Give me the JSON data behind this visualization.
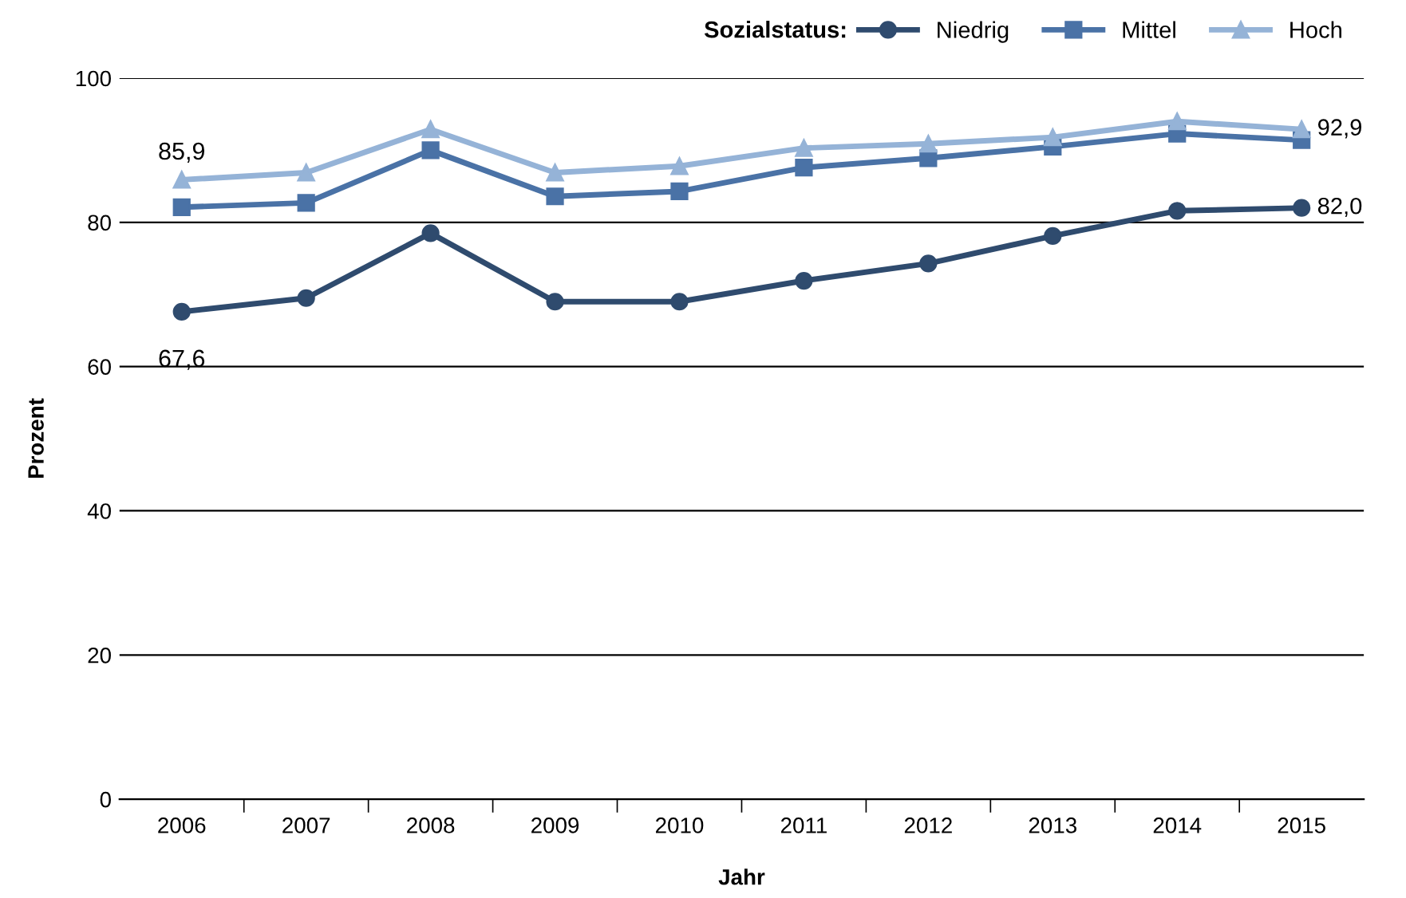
{
  "chart_data": {
    "type": "line",
    "xlabel": "Jahr",
    "ylabel": "Prozent",
    "legend_title": "Sozialstatus:",
    "categories": [
      "2006",
      "2007",
      "2008",
      "2009",
      "2010",
      "2011",
      "2012",
      "2013",
      "2014",
      "2015"
    ],
    "series": [
      {
        "name": "Niedrig",
        "color": "#2f4b6e",
        "marker": "circle",
        "values": [
          67.6,
          69.5,
          78.5,
          69.0,
          69.0,
          71.9,
          74.3,
          78.1,
          81.6,
          82.0
        ]
      },
      {
        "name": "Mittel",
        "color": "#4a72a6",
        "marker": "square",
        "values": [
          82.1,
          82.7,
          90.0,
          83.6,
          84.3,
          87.6,
          88.9,
          90.5,
          92.3,
          91.4
        ]
      },
      {
        "name": "Hoch",
        "color": "#95b3d7",
        "marker": "triangle",
        "values": [
          85.9,
          86.9,
          92.9,
          86.9,
          87.8,
          90.3,
          90.9,
          91.8,
          94.0,
          92.9
        ]
      }
    ],
    "ylim": [
      0,
      100
    ],
    "yticks": [
      0,
      20,
      40,
      60,
      80,
      100
    ],
    "grid": "y",
    "legend": "top right",
    "line_style": "solid",
    "annotations": [
      {
        "text": "85,9",
        "x": "2006",
        "y": 85.9
      },
      {
        "text": "67,6",
        "x": "2006",
        "y": 67.6
      },
      {
        "text": "92,9",
        "x": "2015",
        "y": 92.9
      },
      {
        "text": "82,0",
        "x": "2015",
        "y": 82.0
      }
    ]
  }
}
